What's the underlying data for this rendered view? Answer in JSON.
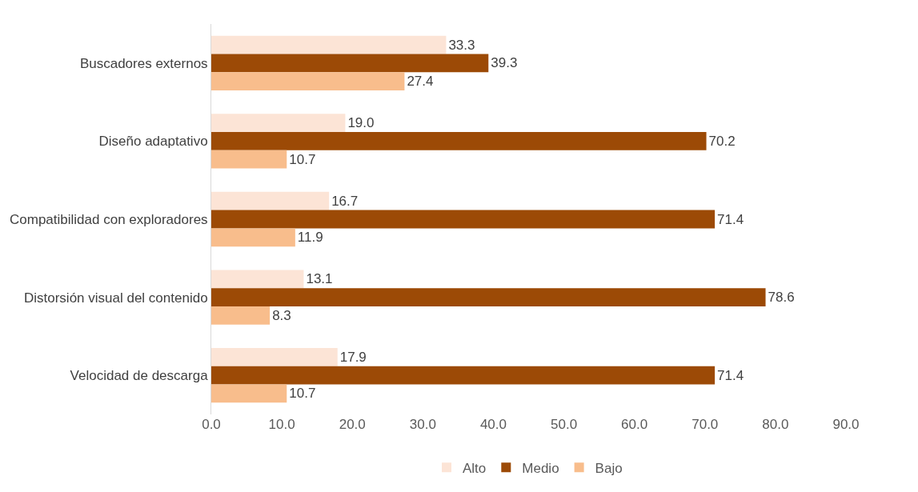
{
  "chart_data": {
    "type": "bar",
    "orientation": "horizontal",
    "categories": [
      "Buscadores externos",
      "Diseño adaptativo",
      "Compatibilidad con exploradores",
      "Distorsión visual del contenido",
      "Velocidad de descarga"
    ],
    "series": [
      {
        "name": "Alto",
        "color": "#fce4d6",
        "values": [
          33.3,
          19.0,
          16.7,
          13.1,
          17.9
        ],
        "value_labels": [
          "33.3",
          "19.0",
          "16.7",
          "13.1",
          "17.9"
        ]
      },
      {
        "name": "Medio",
        "color": "#9c4a06",
        "values": [
          39.3,
          70.2,
          71.4,
          78.6,
          71.4
        ],
        "value_labels": [
          "39.3",
          "70.2",
          "71.4",
          "78.6",
          "71.4"
        ]
      },
      {
        "name": "Bajo",
        "color": "#f8bd8c",
        "values": [
          27.4,
          10.7,
          11.9,
          8.3,
          10.7
        ],
        "value_labels": [
          "27.4",
          "10.7",
          "11.9",
          "8.3",
          "10.7"
        ]
      }
    ],
    "xlim": [
      0,
      90
    ],
    "xticks": [
      {
        "value": 0,
        "label": "0.0"
      },
      {
        "value": 10,
        "label": "10.0"
      },
      {
        "value": 20,
        "label": "20.0"
      },
      {
        "value": 30,
        "label": "30.0"
      },
      {
        "value": 40,
        "label": "40.0"
      },
      {
        "value": 50,
        "label": "50.0"
      },
      {
        "value": 60,
        "label": "60.0"
      },
      {
        "value": 70,
        "label": "70.0"
      },
      {
        "value": 80,
        "label": "80.0"
      },
      {
        "value": 90,
        "label": "90.0"
      }
    ],
    "legend": "bottom"
  }
}
